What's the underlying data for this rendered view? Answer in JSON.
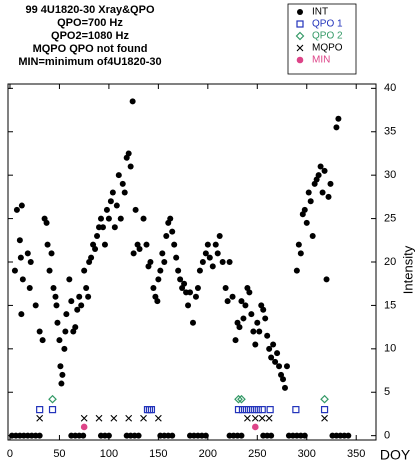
{
  "chart_data": {
    "type": "scatter",
    "title_lines": [
      "99 4U1820-30 Xray&QPO",
      "QPO=700 Hz",
      "QPO2=1080 Hz",
      "MQPO QPO not found",
      "MIN=minimum of4U1820-30"
    ],
    "x_label": "DOY",
    "y_label": "Intensity",
    "xlim": [
      -2,
      370
    ],
    "ylim": [
      -0.5,
      40.5
    ],
    "xticks": [
      0,
      50,
      100,
      150,
      200,
      250,
      300,
      350
    ],
    "yticks": [
      0,
      5,
      10,
      15,
      20,
      25,
      30,
      35,
      40
    ],
    "series": [
      {
        "name": "INT",
        "color": "#000000",
        "marker": "dot",
        "x": [
          5,
          7,
          10,
          11,
          12,
          13,
          11.5,
          18,
          20,
          21,
          26,
          30,
          33,
          35,
          37,
          38,
          40,
          42,
          44,
          46,
          47,
          48,
          50,
          51,
          52,
          53,
          55,
          56,
          57,
          60,
          62,
          64,
          66,
          68,
          70,
          72,
          75,
          77,
          79,
          80,
          82,
          84,
          86,
          88,
          90,
          92,
          94,
          96,
          98,
          100,
          102,
          104,
          106,
          108,
          110,
          112,
          114,
          116,
          118,
          120,
          122,
          124,
          125,
          127,
          129,
          131,
          135,
          138,
          140,
          142,
          145,
          147,
          149,
          150,
          152,
          154,
          156,
          158,
          160,
          162,
          164,
          166,
          168,
          170,
          172,
          174,
          176,
          178,
          180,
          182,
          185,
          188,
          190,
          192,
          195,
          198,
          200,
          202,
          205,
          208,
          210,
          212,
          215,
          218,
          220,
          222,
          225,
          228,
          230,
          232,
          234,
          236,
          238,
          240,
          242,
          244,
          246,
          248,
          250,
          252,
          254,
          256,
          258,
          260,
          262,
          264,
          266,
          268,
          270,
          272,
          274,
          276,
          278,
          280,
          290,
          292,
          294,
          296,
          298,
          300,
          302,
          304,
          306,
          308,
          310,
          312,
          314,
          316,
          318,
          320,
          322,
          324,
          330,
          332,
          2,
          6,
          10,
          14,
          18,
          22,
          26,
          30,
          62,
          66,
          70,
          74,
          92,
          96,
          100,
          118,
          122,
          126,
          130,
          152,
          156,
          160,
          164,
          182,
          186,
          190,
          194,
          198,
          222,
          226,
          230,
          234,
          256,
          260,
          264,
          282,
          286,
          290,
          294,
          298,
          326,
          330,
          334,
          338,
          342
        ],
        "values": [
          19,
          26,
          22.5,
          20.5,
          26.5,
          18,
          14,
          21,
          17,
          20,
          15,
          12,
          11,
          25,
          24.5,
          22,
          19,
          21,
          17,
          16,
          15,
          13,
          11,
          8,
          6,
          7,
          10,
          12,
          14,
          18,
          15.5,
          12,
          12.5,
          14.5,
          16,
          15,
          19,
          17,
          16,
          20,
          20.5,
          22,
          21.5,
          23,
          24,
          25,
          24,
          22,
          26,
          25,
          27,
          28,
          24,
          26.5,
          30,
          25,
          29,
          28,
          32,
          32.5,
          31,
          38.5,
          21,
          26,
          22,
          21.5,
          25,
          22,
          19.5,
          20,
          17,
          16,
          15.5,
          18,
          19,
          21,
          20,
          23,
          24.5,
          25,
          23.5,
          22,
          20.5,
          19,
          18,
          17,
          17.5,
          16.5,
          15,
          16.5,
          13,
          16,
          17,
          19,
          20,
          21,
          22,
          20.5,
          19.5,
          22,
          21,
          23,
          20,
          17,
          15.5,
          20,
          16,
          11,
          13,
          12.5,
          15.5,
          13.5,
          15,
          17,
          16.5,
          14,
          12,
          10.5,
          13,
          12,
          15,
          14.5,
          13.5,
          11.5,
          10,
          9,
          10.5,
          8.5,
          9.5,
          8,
          7,
          6.5,
          5.5,
          8,
          19,
          22,
          21,
          25.5,
          26,
          24.5,
          28,
          27,
          23,
          29,
          29.5,
          30,
          31,
          28,
          30.5,
          18,
          27.5,
          29,
          35.5,
          36.5,
          0,
          0,
          0,
          0,
          0,
          0,
          0,
          0,
          0,
          0,
          0,
          0,
          0,
          0,
          0,
          0,
          0,
          0,
          0,
          0,
          0,
          0,
          0,
          0,
          0,
          0,
          0,
          0,
          0,
          0,
          0,
          0,
          0,
          0,
          0,
          0,
          0,
          0,
          0,
          0,
          0,
          0,
          0,
          0,
          0
        ]
      },
      {
        "name": "QPO 1",
        "color": "#2233bb",
        "marker": "square",
        "x": [
          30,
          43,
          139,
          141,
          143,
          231,
          235,
          239,
          243,
          247,
          251,
          255,
          263,
          289,
          318
        ],
        "values": [
          3,
          3,
          3,
          3,
          3,
          3,
          3,
          3,
          3,
          3,
          3,
          3,
          3,
          3,
          3
        ]
      },
      {
        "name": "QPO 2",
        "color": "#339966",
        "marker": "diamond",
        "x": [
          43,
          231,
          234,
          318
        ],
        "values": [
          4.2,
          4.2,
          4.2,
          4.2
        ]
      },
      {
        "name": "MQPO",
        "color": "#000000",
        "marker": "x",
        "x": [
          30,
          75,
          90,
          105,
          120,
          135,
          150,
          240,
          248,
          255,
          262,
          318
        ],
        "values": [
          2,
          2,
          2,
          2,
          2,
          2,
          2,
          2,
          2,
          2,
          2,
          2
        ]
      },
      {
        "name": "MIN",
        "color": "#dd4488",
        "marker": "circle",
        "x": [
          75,
          248
        ],
        "values": [
          1,
          1
        ]
      }
    ]
  }
}
